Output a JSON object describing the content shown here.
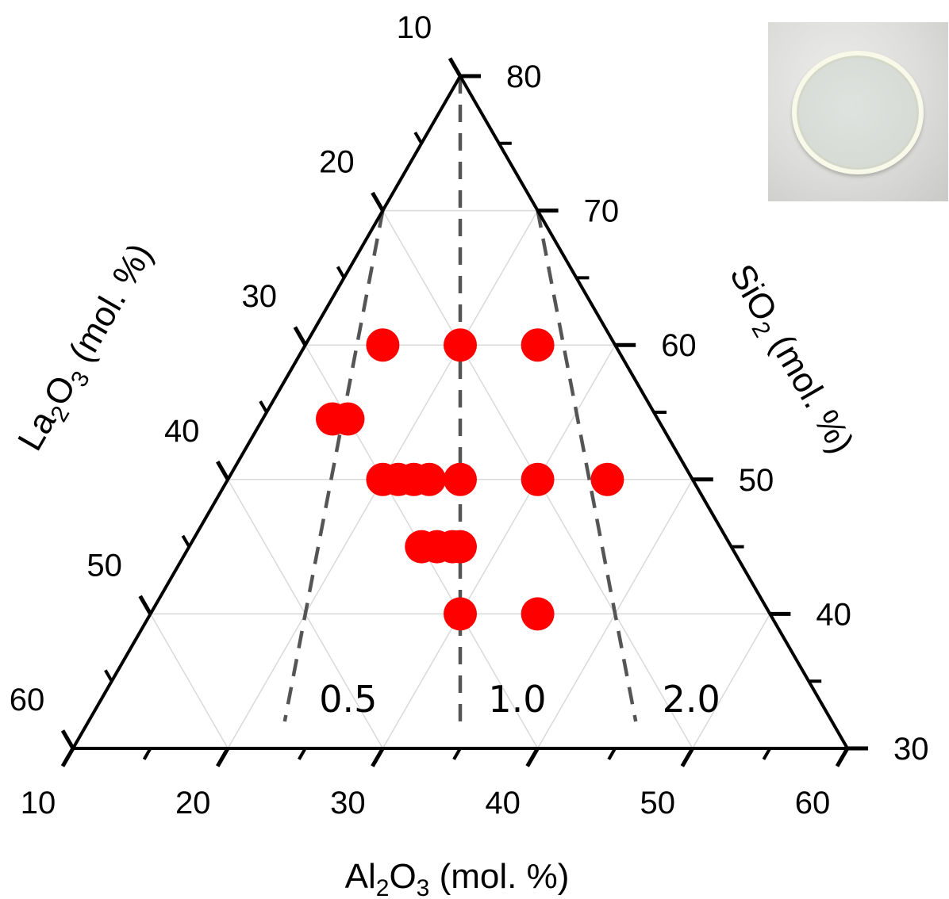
{
  "chart_data": {
    "type": "scatter",
    "subtype": "ternary",
    "axes": {
      "bottom": {
        "label_prefix": "Al",
        "label_sub1": "2",
        "label_mid": "O",
        "label_sub2": "3",
        "label_suffix": " (mol. %)",
        "range": [
          10,
          60
        ],
        "ticks": [
          "10",
          "20",
          "30",
          "40",
          "50",
          "60"
        ]
      },
      "left": {
        "label_prefix": "La",
        "label_sub1": "2",
        "label_mid": "O",
        "label_sub2": "3",
        "label_suffix": " (mol. %)",
        "range": [
          10,
          60
        ],
        "ticks": [
          "10",
          "20",
          "30",
          "40",
          "50",
          "60"
        ]
      },
      "right": {
        "label_prefix": "SiO",
        "label_sub1": "2",
        "label_suffix": " (mol. %)",
        "range": [
          30,
          80
        ],
        "ticks": [
          "30",
          "40",
          "50",
          "60",
          "70",
          "80"
        ]
      }
    },
    "grid": true,
    "points": [
      {
        "la2o3": 25,
        "al2o3": 15,
        "sio2": 60
      },
      {
        "la2o3": 20,
        "al2o3": 20,
        "sio2": 60
      },
      {
        "la2o3": 15,
        "al2o3": 25,
        "sio2": 60
      },
      {
        "la2o3": 31,
        "al2o3": 14.5,
        "sio2": 54.5
      },
      {
        "la2o3": 30,
        "al2o3": 15.5,
        "sio2": 54.5
      },
      {
        "la2o3": 30,
        "al2o3": 20,
        "sio2": 50
      },
      {
        "la2o3": 29,
        "al2o3": 21,
        "sio2": 50
      },
      {
        "la2o3": 28,
        "al2o3": 22,
        "sio2": 50
      },
      {
        "la2o3": 27,
        "al2o3": 23,
        "sio2": 50
      },
      {
        "la2o3": 25,
        "al2o3": 25,
        "sio2": 50
      },
      {
        "la2o3": 20,
        "al2o3": 30,
        "sio2": 50
      },
      {
        "la2o3": 15.5,
        "al2o3": 34.5,
        "sio2": 50
      },
      {
        "la2o3": 30,
        "al2o3": 25,
        "sio2": 45
      },
      {
        "la2o3": 29,
        "al2o3": 26,
        "sio2": 45
      },
      {
        "la2o3": 28,
        "al2o3": 27,
        "sio2": 45
      },
      {
        "la2o3": 27.5,
        "al2o3": 27.5,
        "sio2": 45
      },
      {
        "la2o3": 30,
        "al2o3": 30,
        "sio2": 40
      },
      {
        "la2o3": 25,
        "al2o3": 35,
        "sio2": 40
      }
    ],
    "ratio_lines": [
      {
        "label": "0.5",
        "ratio": 0.5
      },
      {
        "label": "1.0",
        "ratio": 1.0
      },
      {
        "label": "2.0",
        "ratio": 2.0
      }
    ],
    "colors": {
      "points": "#ff0000",
      "axes": "#000000",
      "grid": "#d9d9d9",
      "ratio_lines": "#555555"
    }
  }
}
